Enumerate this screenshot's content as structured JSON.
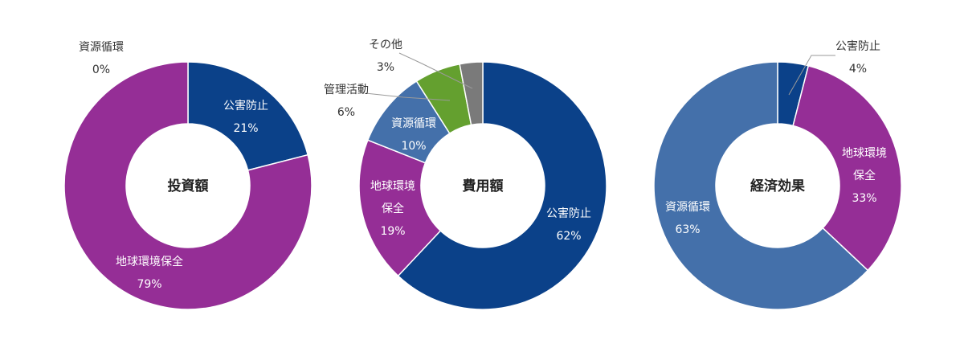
{
  "colors": {
    "kogai": "#0b4189",
    "chikyu": "#952e96",
    "shigen_blue": "#4470aa",
    "kanri": "#64a02f",
    "other": "#7a7a7a",
    "label_dark": "#333333",
    "label_light": "#ffffff"
  },
  "chart_data": [
    {
      "type": "pie",
      "title": "投資額",
      "slices": [
        {
          "category": "公害防止",
          "value": 21,
          "label_lines": [
            "公害防止",
            "21%"
          ],
          "color": "#0b4189"
        },
        {
          "category": "地球環境保全",
          "value": 79,
          "label_lines": [
            "地球環境保全",
            "79%"
          ],
          "color": "#952e96"
        },
        {
          "category": "資源循環",
          "value": 0,
          "label_lines": [
            "資源循環",
            "0%"
          ],
          "color": "#4470aa"
        }
      ]
    },
    {
      "type": "pie",
      "title": "費用額",
      "slices": [
        {
          "category": "公害防止",
          "value": 62,
          "label_lines": [
            "公害防止",
            "62%"
          ],
          "color": "#0b4189"
        },
        {
          "category": "地球環境保全",
          "value": 19,
          "label_lines": [
            "地球環境",
            "保全",
            "19%"
          ],
          "color": "#952e96"
        },
        {
          "category": "資源循環",
          "value": 10,
          "label_lines": [
            "資源循環",
            "10%"
          ],
          "color": "#4470aa"
        },
        {
          "category": "管理活動",
          "value": 6,
          "label_lines": [
            "管理活動",
            "6%"
          ],
          "color": "#64a02f"
        },
        {
          "category": "その他",
          "value": 3,
          "label_lines": [
            "その他",
            "3%"
          ],
          "color": "#7a7a7a"
        }
      ]
    },
    {
      "type": "pie",
      "title": "経済効果",
      "slices": [
        {
          "category": "公害防止",
          "value": 4,
          "label_lines": [
            "公害防止",
            "4%"
          ],
          "color": "#0b4189"
        },
        {
          "category": "地球環境保全",
          "value": 33,
          "label_lines": [
            "地球環境",
            "保全",
            "33%"
          ],
          "color": "#952e96"
        },
        {
          "category": "資源循環",
          "value": 63,
          "label_lines": [
            "資源循環",
            "63%"
          ],
          "color": "#4470aa"
        }
      ]
    }
  ]
}
